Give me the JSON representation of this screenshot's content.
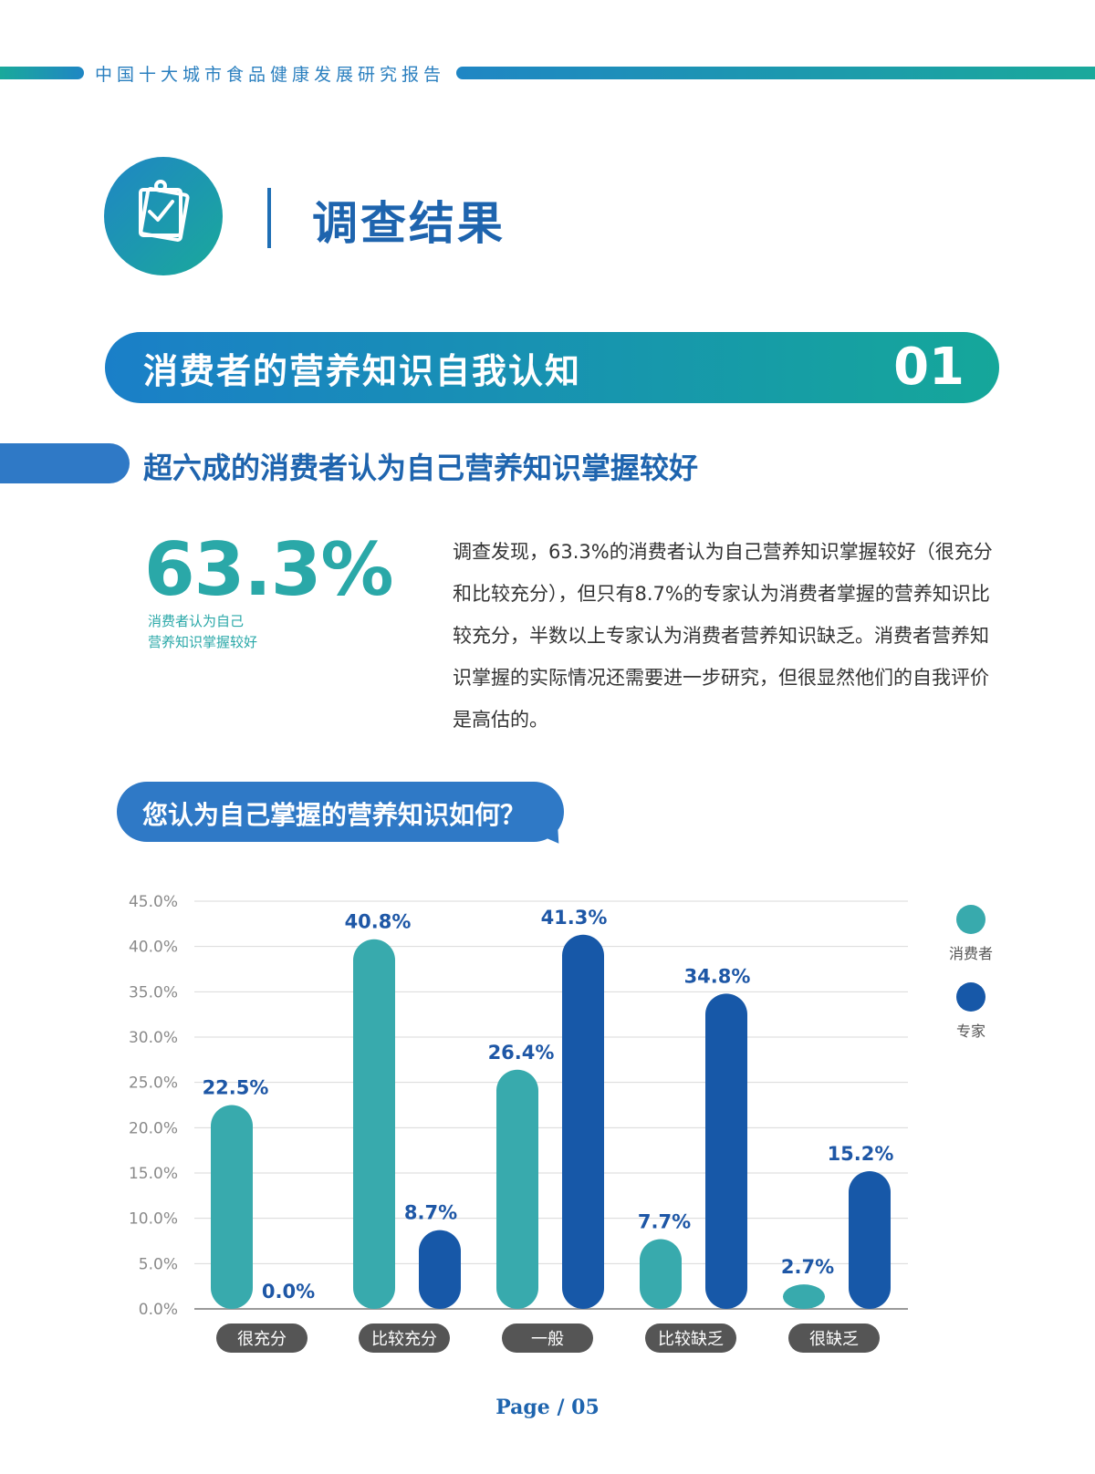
{
  "header": {
    "report_title": "中国十大城市食品健康发展研究报告"
  },
  "section": {
    "title": "调查结果",
    "icon": "clipboard-check-icon"
  },
  "banner": {
    "title": "消费者的营养知识自我认知",
    "number": "01"
  },
  "subheading": "超六成的消费者认为自己营养知识掌握较好",
  "stat": {
    "value": "63.3%",
    "caption_line1": "消费者认为自己",
    "caption_line2": "营养知识掌握较好"
  },
  "paragraph": "调查发现，63.3%的消费者认为自己营养知识掌握较好（很充分和比较充分），但只有8.7%的专家认为消费者掌握的营养知识比较充分，半数以上专家认为消费者营养知识缺乏。消费者营养知识掌握的实际情况还需要进一步研究，但很显然他们的自我评价是高估的。",
  "question": "您认为自己掌握的营养知识如何？",
  "colors": {
    "consumer": "#38aaad",
    "expert": "#1758a8",
    "category_pill": "#555555",
    "accent": "#1e64ae"
  },
  "chart_data": {
    "type": "bar",
    "categories": [
      "很充分",
      "比较充分",
      "一般",
      "比较缺乏",
      "很缺乏"
    ],
    "series": [
      {
        "name": "消费者",
        "values": [
          22.5,
          40.8,
          26.4,
          7.7,
          2.7
        ],
        "labels": [
          "22.5%",
          "40.8%",
          "26.4%",
          "7.7%",
          "2.7%"
        ]
      },
      {
        "name": "专家",
        "values": [
          0.0,
          8.7,
          41.3,
          34.8,
          15.2
        ],
        "labels": [
          "0.0%",
          "8.7%",
          "41.3%",
          "34.8%",
          "15.2%"
        ]
      }
    ],
    "yticks": [
      "0.0%",
      "5.0%",
      "10.0%",
      "15.0%",
      "20.0%",
      "25.0%",
      "30.0%",
      "35.0%",
      "40.0%",
      "45.0%"
    ],
    "ylim": [
      0,
      45
    ],
    "grid": true,
    "legend_position": "right"
  },
  "footer": {
    "page": "Page / 05"
  }
}
